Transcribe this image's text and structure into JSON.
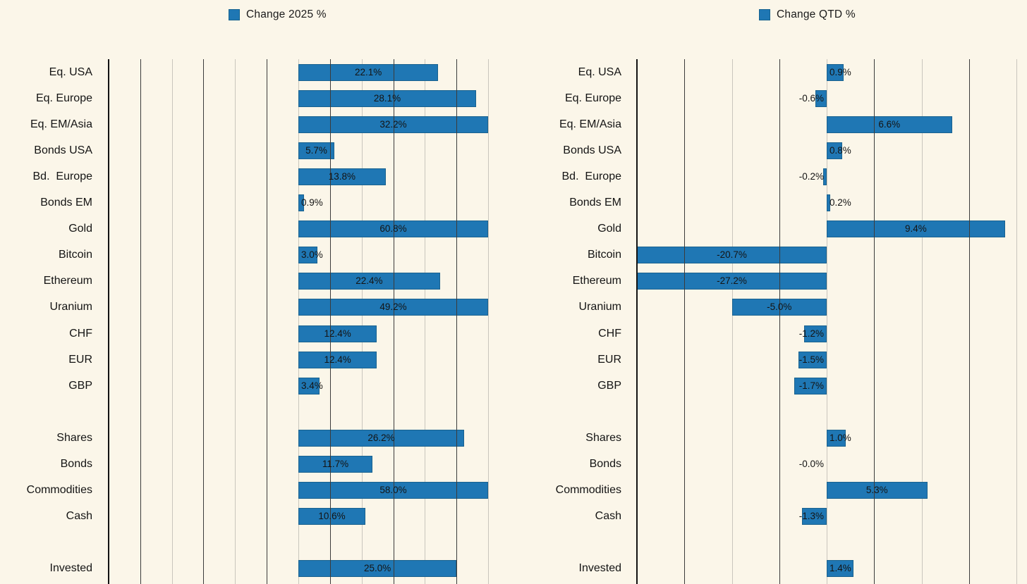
{
  "page": {
    "background_color": "#fbf6e9",
    "bar_color": "#1f77b4",
    "bar_edge_color": "#1a628f",
    "gridline_dark_color": "#3b3b3b",
    "gridline_light_color": "#c9c6bd",
    "axis_edge_color": "#131313",
    "text_color": "#141414"
  },
  "chart_data": [
    {
      "type": "bar",
      "orientation": "horizontal",
      "legend": "Change 2025 %",
      "legend_position": "top",
      "value_suffix": "%",
      "xlim": [
        -30,
        30
      ],
      "grid_step_pct": 5,
      "grid": "vertical lines, alternating dark/light, dark left edge, no tick labels visible",
      "bars_clipped_to_xlim": true,
      "categories": [
        "Eq. USA",
        "Eq. Europe",
        "Eq. EM/Asia",
        "Bonds USA",
        "Bd.  Europe",
        "Bonds EM",
        "Gold",
        "Bitcoin",
        "Ethereum",
        "Uranium",
        "CHF",
        "EUR",
        "GBP",
        "",
        "Shares",
        "Bonds",
        "Commodities",
        "Cash",
        "",
        "Invested"
      ],
      "values": [
        22.1,
        28.1,
        32.2,
        5.7,
        13.8,
        0.9,
        60.8,
        3.0,
        22.4,
        49.2,
        12.4,
        12.4,
        3.4,
        null,
        26.2,
        11.7,
        58.0,
        10.6,
        null,
        25.0
      ],
      "labels": [
        "22.1%",
        "28.1%",
        "32.2%",
        "5.7%",
        "13.8%",
        "0.9%",
        "60.8%",
        "3.0%",
        "22.4%",
        "49.2%",
        "12.4%",
        "12.4%",
        "3.4%",
        "",
        "26.2%",
        "11.7%",
        "58.0%",
        "10.6%",
        "",
        "25.0%"
      ]
    },
    {
      "type": "bar",
      "orientation": "horizontal",
      "legend": "Change QTD %",
      "legend_position": "top",
      "value_suffix": "%",
      "xlim": [
        -10,
        10
      ],
      "grid_step_pct": 2.5,
      "grid": "vertical lines, alternating dark/light, dark left edge, no tick labels visible",
      "bars_clipped_to_xlim": true,
      "categories": [
        "Eq. USA",
        "Eq. Europe",
        "Eq. EM/Asia",
        "Bonds USA",
        "Bd.  Europe",
        "Bonds EM",
        "Gold",
        "Bitcoin",
        "Ethereum",
        "Uranium",
        "CHF",
        "EUR",
        "GBP",
        "",
        "Shares",
        "Bonds",
        "Commodities",
        "Cash",
        "",
        "Invested"
      ],
      "values": [
        0.9,
        -0.6,
        6.6,
        0.8,
        -0.2,
        0.2,
        9.4,
        -20.7,
        -27.2,
        -5.0,
        -1.2,
        -1.5,
        -1.7,
        null,
        1.0,
        -0.0,
        5.3,
        -1.3,
        null,
        1.4
      ],
      "labels": [
        "0.9%",
        "-0.6%",
        "6.6%",
        "0.8%",
        "-0.2%",
        "0.2%",
        "9.4%",
        "-20.7%",
        "-27.2%",
        "-5.0%",
        "-1.2%",
        "-1.5%",
        "-1.7%",
        "",
        "1.0%",
        "-0.0%",
        "5.3%",
        "-1.3%",
        "",
        "1.4%"
      ]
    }
  ]
}
